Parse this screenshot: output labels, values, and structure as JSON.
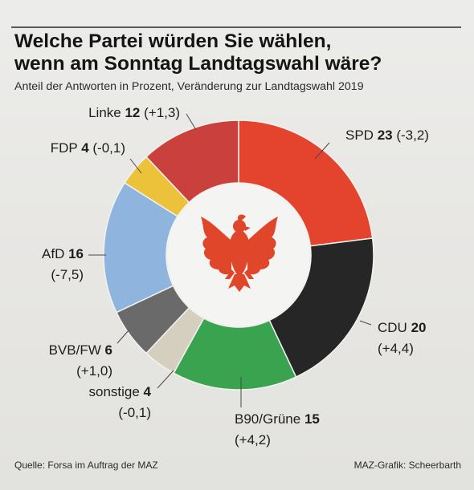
{
  "header": {
    "title": "Welche Partei würden Sie wählen,\nwenn am Sonntag Landtagswahl wäre?",
    "subtitle": "Anteil der Antworten in Prozent, Veränderung zur Landtagswahl 2019"
  },
  "footer": {
    "source": "Quelle: Forsa im Auftrag der MAZ",
    "credit": "MAZ-Grafik: Scheerbarth"
  },
  "colors": {
    "SPD": "#e4432d",
    "CDU": "#262626",
    "B90/Grüne": "#3aa34f",
    "sonstige": "#d4cfbf",
    "BVB/FW": "#6a6a6a",
    "AfD": "#8fb4de",
    "FDP": "#ecc23a",
    "Linke": "#c9403c",
    "eagle": "#e0462a"
  },
  "center_icon": "brandenburg-eagle-icon",
  "chart_data": {
    "type": "pie",
    "donut": true,
    "title": "Welche Partei würden Sie wählen, wenn am Sonntag Landtagswahl wäre?",
    "subtitle": "Anteil der Antworten in Prozent, Veränderung zur Landtagswahl 2019",
    "unit": "Prozent",
    "slices": [
      {
        "name": "SPD",
        "value": 23,
        "change": "(-3,2)"
      },
      {
        "name": "CDU",
        "value": 20,
        "change": "(+4,4)"
      },
      {
        "name": "B90/Grüne",
        "value": 15,
        "change": "(+4,2)"
      },
      {
        "name": "sonstige",
        "value": 4,
        "change": "(-0,1)"
      },
      {
        "name": "BVB/FW",
        "value": 6,
        "change": "(+1,0)"
      },
      {
        "name": "AfD",
        "value": 16,
        "change": "(-7,5)"
      },
      {
        "name": "FDP",
        "value": 4,
        "change": "(-0,1)"
      },
      {
        "name": "Linke",
        "value": 12,
        "change": "(+1,3)"
      }
    ]
  }
}
